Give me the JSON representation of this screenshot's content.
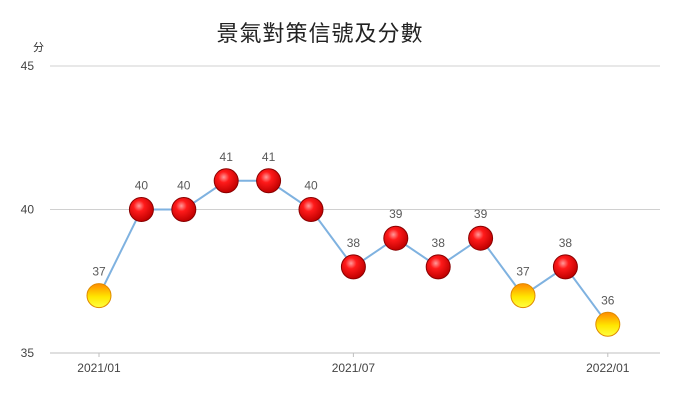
{
  "chart_data": {
    "type": "line",
    "title": "景氣對策信號及分數",
    "unit_label": "分",
    "ylim": [
      35,
      45
    ],
    "y_ticks": [
      35,
      40,
      45
    ],
    "x_tick_labels": [
      "2021/01",
      "2021/07",
      "2022/01"
    ],
    "x": [
      "2021/01",
      "2021/02",
      "2021/03",
      "2021/04",
      "2021/05",
      "2021/06",
      "2021/07",
      "2021/08",
      "2021/09",
      "2021/10",
      "2021/11",
      "2021/12",
      "2022/01"
    ],
    "values": [
      37,
      40,
      40,
      41,
      41,
      40,
      38,
      39,
      38,
      39,
      37,
      38,
      36
    ],
    "signals": [
      "yellow-red",
      "red",
      "red",
      "red",
      "red",
      "red",
      "red",
      "red",
      "red",
      "red",
      "yellow-red",
      "red",
      "yellow-red"
    ],
    "grid": true,
    "colors": {
      "line": "#7FB2E0",
      "red": "#FF0000",
      "yellow-red": "#FFE000",
      "grid": "#D0D0D0"
    }
  }
}
